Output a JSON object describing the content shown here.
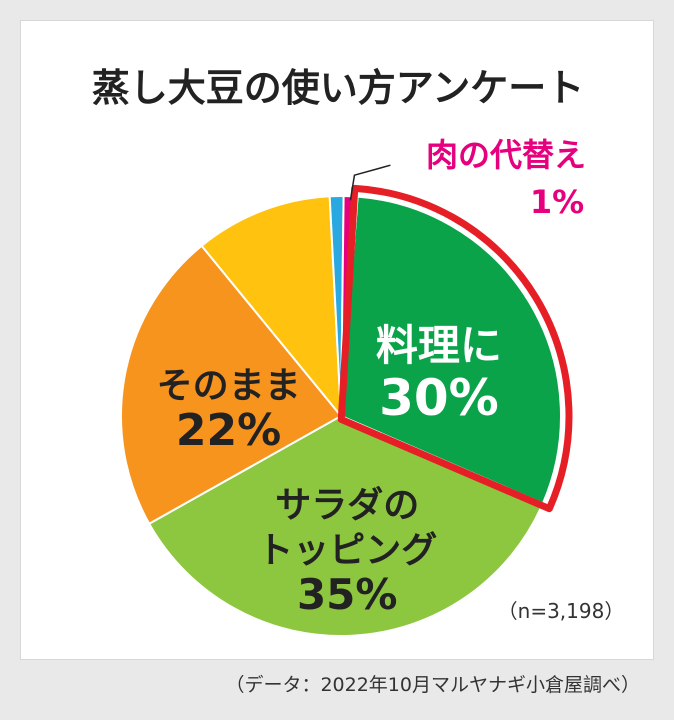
{
  "chart_data": {
    "type": "pie",
    "title": "蒸し大豆の使い方アンケート",
    "sample_size": "（n=3,198）",
    "source": "（データ：2022年10月マルヤナギ小倉屋調べ）",
    "slices": [
      {
        "label": "料理に",
        "percent_label": "30%",
        "value": 30,
        "color": "#0aa34a",
        "text_color": "#ffffff",
        "highlight": true
      },
      {
        "label": "サラダの\nトッピング",
        "percent_label": "35%",
        "value": 35,
        "color": "#8dc63f",
        "text_color": "#222222"
      },
      {
        "label": "そのまま",
        "percent_label": "22%",
        "value": 22,
        "color": "#f7941d",
        "text_color": "#222222"
      },
      {
        "label": "",
        "percent_label": "",
        "value": 10,
        "color": "#ffc20e"
      },
      {
        "label": "",
        "percent_label": "",
        "value": 1,
        "color": "#29a9e0"
      },
      {
        "label": "肉の代替え",
        "percent_label": "1%",
        "value": 1,
        "color": "#e6007e",
        "text_color": "#e6007e",
        "callout": true
      }
    ],
    "highlight_color": "#e51f25"
  }
}
